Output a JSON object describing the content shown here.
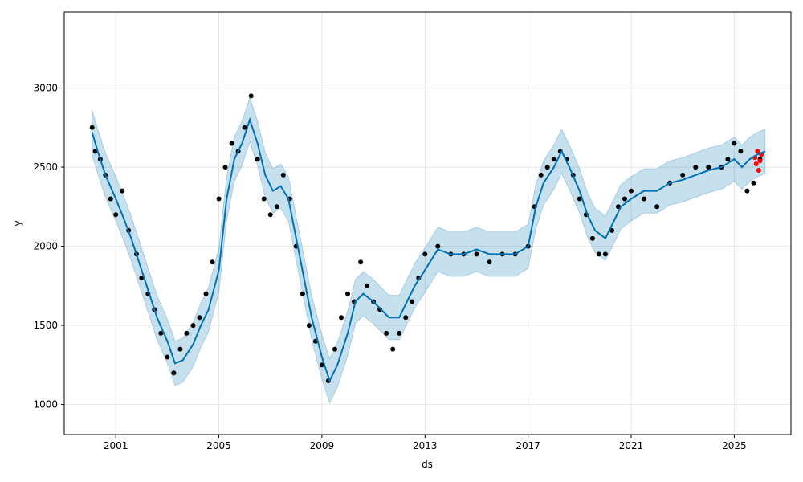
{
  "chart_data": {
    "type": "scatter",
    "xlabel": "ds",
    "ylabel": "y",
    "xlim": [
      1999.0,
      2027.2
    ],
    "ylim": [
      810,
      3480
    ],
    "x_ticks": [
      2001,
      2005,
      2009,
      2013,
      2017,
      2021,
      2025
    ],
    "x_tick_labels": [
      "2001",
      "2005",
      "2009",
      "2013",
      "2017",
      "2021",
      "2025"
    ],
    "y_ticks": [
      1000,
      1500,
      2000,
      2500,
      3000
    ],
    "y_tick_labels": [
      "1000",
      "1500",
      "2000",
      "2500",
      "3000"
    ],
    "grid": true,
    "series": [
      {
        "role": "observed",
        "color": "#000000",
        "x": [
          2000.08,
          2000.2,
          2000.4,
          2000.6,
          2000.8,
          2001.0,
          2001.25,
          2001.5,
          2001.8,
          2002.0,
          2002.25,
          2002.5,
          2002.75,
          2003.0,
          2003.25,
          2003.5,
          2003.75,
          2004.0,
          2004.25,
          2004.5,
          2004.75,
          2005.0,
          2005.25,
          2005.5,
          2005.75,
          2006.0,
          2006.25,
          2006.5,
          2006.75,
          2007.0,
          2007.25,
          2007.5,
          2007.75,
          2008.0,
          2008.25,
          2008.5,
          2008.75,
          2009.0,
          2009.25,
          2009.5,
          2009.75,
          2010.0,
          2010.25,
          2010.5,
          2010.75,
          2011.0,
          2011.25,
          2011.5,
          2011.75,
          2012.0,
          2012.25,
          2012.5,
          2012.75,
          2013.0,
          2013.5,
          2014.0,
          2014.5,
          2015.0,
          2015.5,
          2016.0,
          2016.5,
          2017.0,
          2017.25,
          2017.5,
          2017.75,
          2018.0,
          2018.25,
          2018.5,
          2018.75,
          2019.0,
          2019.25,
          2019.5,
          2019.75,
          2020.0,
          2020.25,
          2020.5,
          2020.75,
          2021.0,
          2021.5,
          2022.0,
          2022.5,
          2023.0,
          2023.5,
          2024.0,
          2024.5,
          2024.75,
          2025.0,
          2025.25,
          2025.5,
          2025.75,
          2026.0
        ],
        "y": [
          2750,
          2600,
          2550,
          2450,
          2300,
          2200,
          2350,
          2100,
          1950,
          1800,
          1700,
          1600,
          1450,
          1300,
          1200,
          1350,
          1450,
          1500,
          1550,
          1700,
          1900,
          2300,
          2500,
          2650,
          2600,
          2750,
          2950,
          2550,
          2300,
          2200,
          2250,
          2450,
          2300,
          2000,
          1700,
          1500,
          1400,
          1250,
          1150,
          1350,
          1550,
          1700,
          1650,
          1900,
          1750,
          1650,
          1600,
          1450,
          1350,
          1450,
          1550,
          1650,
          1800,
          1950,
          2000,
          1950,
          1950,
          1950,
          1900,
          1950,
          1950,
          2000,
          2250,
          2450,
          2500,
          2550,
          2600,
          2550,
          2450,
          2300,
          2200,
          2050,
          1950,
          1950,
          2100,
          2250,
          2300,
          2350,
          2300,
          2250,
          2400,
          2450,
          2500,
          2500,
          2500,
          2550,
          2650,
          2600,
          2350,
          2400,
          2550
        ]
      },
      {
        "role": "holdout",
        "color": "#ff0000",
        "x": [
          2025.8,
          2025.85,
          2025.9,
          2025.95,
          2026.0,
          2026.05
        ],
        "y": [
          2560,
          2520,
          2600,
          2480,
          2540,
          2580
        ]
      },
      {
        "role": "forecast",
        "color": "#0072b2",
        "x": [
          2000.08,
          2000.3,
          2000.6,
          2001.0,
          2001.3,
          2001.6,
          2002.0,
          2002.3,
          2002.6,
          2003.0,
          2003.3,
          2003.6,
          2004.0,
          2004.3,
          2004.6,
          2005.0,
          2005.3,
          2005.6,
          2005.9,
          2006.2,
          2006.5,
          2006.8,
          2007.1,
          2007.4,
          2007.7,
          2008.0,
          2008.3,
          2008.6,
          2009.0,
          2009.3,
          2009.6,
          2010.0,
          2010.3,
          2010.6,
          2011.0,
          2011.3,
          2011.6,
          2012.0,
          2012.3,
          2012.6,
          2013.0,
          2013.5,
          2014.0,
          2014.5,
          2015.0,
          2015.5,
          2016.0,
          2016.5,
          2017.0,
          2017.3,
          2017.6,
          2018.0,
          2018.3,
          2018.6,
          2019.0,
          2019.3,
          2019.6,
          2020.0,
          2020.3,
          2020.6,
          2021.0,
          2021.5,
          2022.0,
          2022.5,
          2023.0,
          2023.5,
          2024.0,
          2024.5,
          2025.0,
          2025.3,
          2025.6,
          2025.9,
          2026.2
        ],
        "y": [
          2720,
          2600,
          2450,
          2300,
          2180,
          2050,
          1850,
          1700,
          1550,
          1400,
          1260,
          1280,
          1380,
          1500,
          1600,
          1850,
          2300,
          2550,
          2650,
          2800,
          2650,
          2450,
          2350,
          2380,
          2300,
          2050,
          1800,
          1550,
          1300,
          1150,
          1250,
          1450,
          1650,
          1700,
          1650,
          1600,
          1550,
          1550,
          1650,
          1750,
          1850,
          1980,
          1950,
          1950,
          1980,
          1950,
          1950,
          1950,
          2000,
          2250,
          2400,
          2500,
          2600,
          2500,
          2350,
          2200,
          2100,
          2050,
          2150,
          2250,
          2300,
          2350,
          2350,
          2400,
          2420,
          2450,
          2480,
          2500,
          2550,
          2500,
          2550,
          2580,
          2600
        ]
      }
    ],
    "uncertainty_band": {
      "color": "#0072b2",
      "half_width": 140
    }
  }
}
